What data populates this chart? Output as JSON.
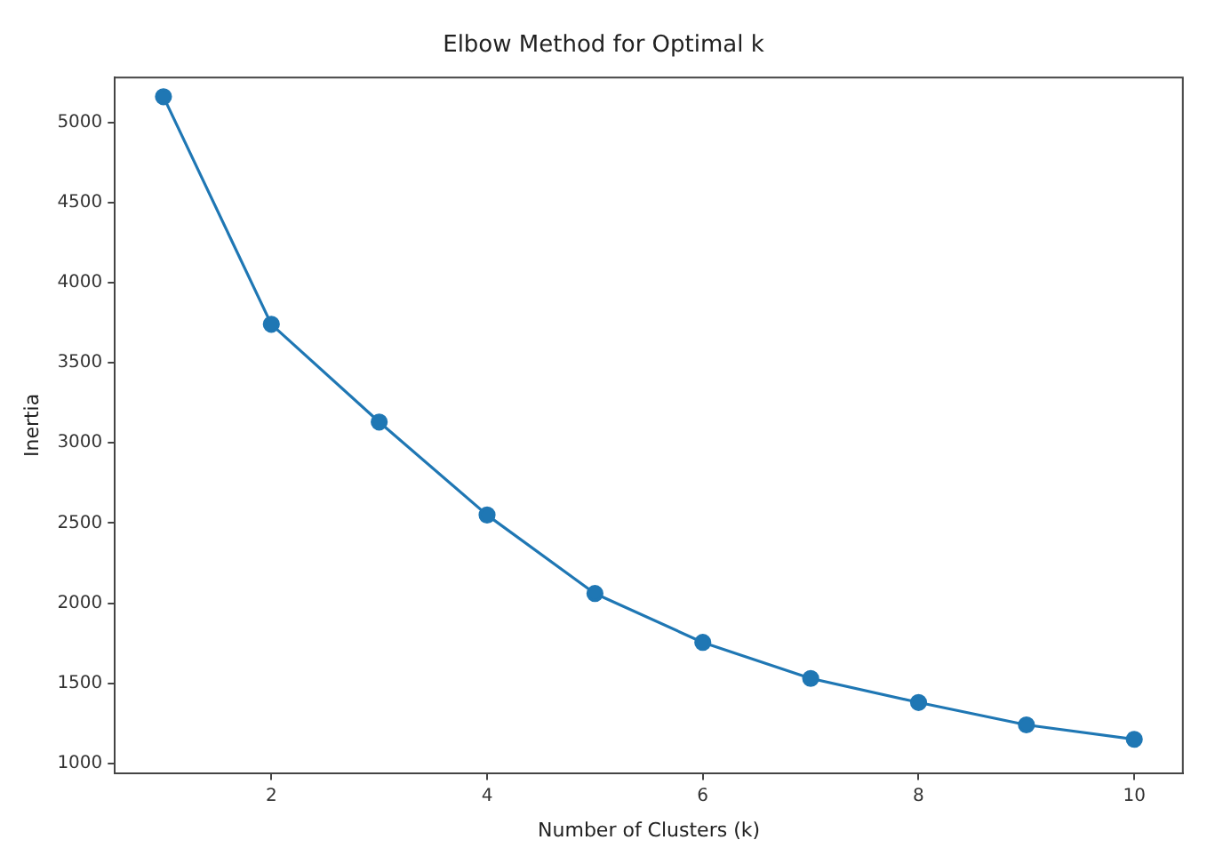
{
  "chart_data": {
    "type": "line",
    "title": "Elbow Method for Optimal k",
    "xlabel": "Number of Clusters (k)",
    "ylabel": "Inertia",
    "x": [
      1,
      2,
      3,
      4,
      5,
      6,
      7,
      8,
      9,
      10
    ],
    "series": [
      {
        "color": "#1f77b4",
        "values": [
          5160,
          3740,
          3130,
          2550,
          2060,
          1755,
          1530,
          1380,
          1240,
          1150
        ]
      }
    ],
    "xlim": [
      0.55,
      10.45
    ],
    "xticks": [
      2,
      4,
      6,
      8,
      10
    ],
    "ylim": [
      940,
      5280
    ],
    "yticks": [
      1000,
      1500,
      2000,
      2500,
      3000,
      3500,
      4000,
      4500,
      5000
    ],
    "marker": "circle",
    "line_style": "solid",
    "grid": false,
    "legend": false
  }
}
